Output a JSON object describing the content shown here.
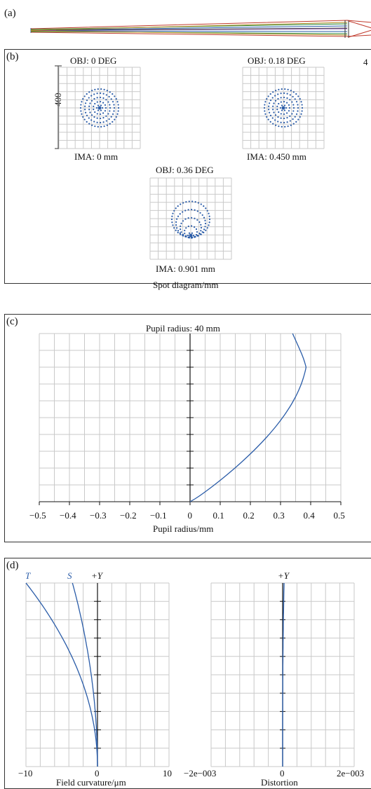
{
  "panel_a": {
    "label": "(a)"
  },
  "panel_b": {
    "label": "(b)",
    "scale_value": "400",
    "spots": [
      {
        "obj": "OBJ: 0 DEG",
        "ima": "IMA: 0 mm"
      },
      {
        "obj": "OBJ: 0.18 DEG",
        "ima": "IMA: 0.450 mm"
      },
      {
        "obj": "OBJ: 0.36 DEG",
        "ima": "IMA: 0.901 mm"
      }
    ],
    "caption": "Spot diagram/mm",
    "edge_fragment": "4"
  },
  "panel_c": {
    "label": "(c)",
    "title": "Pupil radius: 40 mm",
    "xlabel": "Pupil radius/mm",
    "ticks": [
      "−0.5",
      "−0.4",
      "−0.3",
      "−0.2",
      "−0.1",
      "0",
      "0.1",
      "0.2",
      "0.3",
      "0.4",
      "0.5"
    ]
  },
  "panel_d": {
    "label": "(d)",
    "curve_T": "T",
    "curve_S": "S",
    "axis_y_left": "+Y",
    "axis_y_right": "+Y",
    "left_ticks": [
      "−10",
      "0",
      "10"
    ],
    "right_ticks": [
      "−2e−003",
      "0",
      "2e−003"
    ],
    "left_xlabel": "Field curvature/μm",
    "right_xlabel": "Distortion"
  },
  "chart_data": [
    {
      "type": "line",
      "x": [
        0,
        0.05,
        0.1,
        0.2,
        0.3,
        0.36,
        0.39,
        0.38,
        0.34
      ],
      "y": [
        0,
        0.2,
        0.3,
        0.45,
        0.6,
        0.72,
        0.85,
        0.95,
        1.0
      ],
      "title": "Pupil radius: 40 mm",
      "xlabel": "Pupil radius/mm",
      "xlim": [
        -0.5,
        0.5
      ],
      "grid": true
    },
    {
      "type": "line",
      "series": [
        {
          "name": "T",
          "x": [
            0,
            -1,
            -3,
            -6,
            -10
          ],
          "y": [
            0,
            0.3,
            0.55,
            0.8,
            1.0
          ]
        },
        {
          "name": "S",
          "x": [
            0,
            -0.5,
            -1.5,
            -2.7,
            -3.5
          ],
          "y": [
            0,
            0.3,
            0.55,
            0.8,
            1.0
          ]
        }
      ],
      "xlabel": "Field curvature/μm",
      "xlim": [
        -10,
        10
      ],
      "grid": true
    },
    {
      "type": "line",
      "x": [
        0,
        0,
        2e-05,
        4e-05
      ],
      "y": [
        0,
        0.5,
        0.8,
        1.0
      ],
      "xlabel": "Distortion",
      "xlim": [
        -0.002,
        0.002
      ],
      "grid": true
    }
  ],
  "colors": {
    "curve": "#2a5ca8",
    "grid": "#c9c9c9",
    "frame": "#333333"
  }
}
